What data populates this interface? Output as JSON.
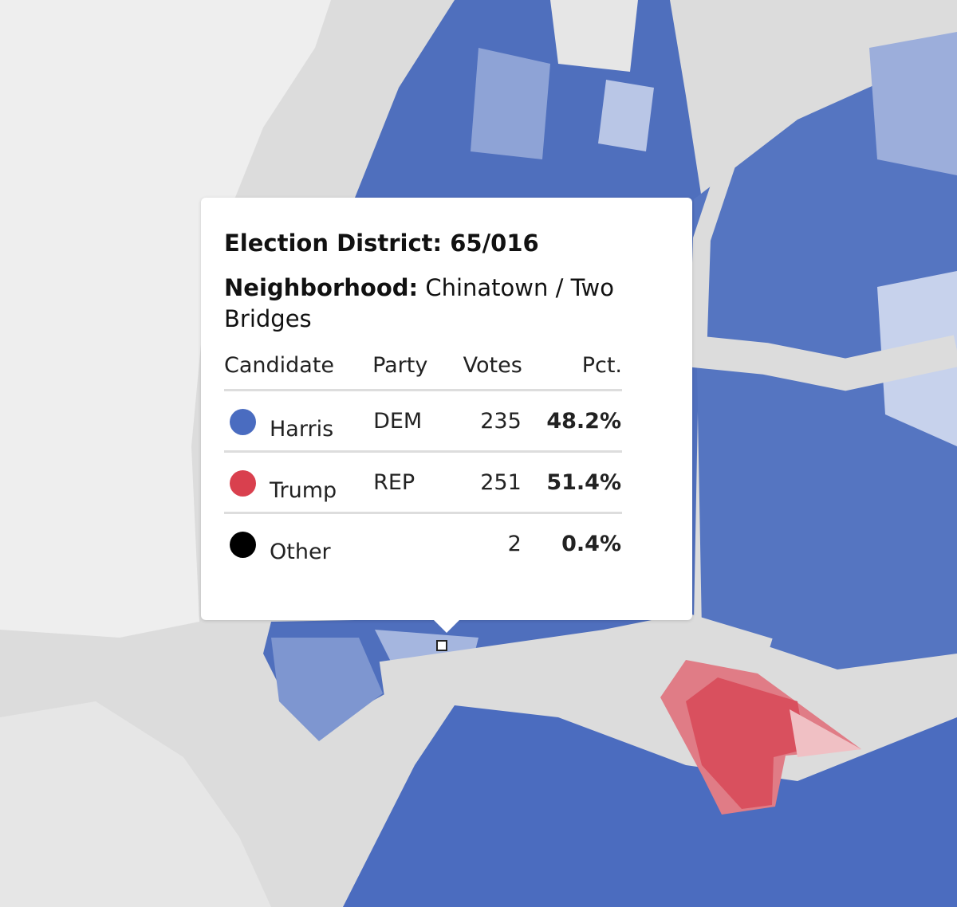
{
  "tooltip": {
    "district_label": "Election District:",
    "district": "65/016",
    "neighborhood_label": "Neighborhood:",
    "neighborhood": "Chinatown / Two Bridges",
    "columns": [
      "Candidate",
      "Party",
      "Votes",
      "Pct."
    ],
    "rows": [
      {
        "candidate": "Harris",
        "party": "DEM",
        "votes": 235,
        "pct": "48.2%",
        "color": "#4a6cc0"
      },
      {
        "candidate": "Trump",
        "party": "REP",
        "votes": 251,
        "pct": "51.4%",
        "color": "#d9404e"
      },
      {
        "candidate": "Other",
        "votes": 2,
        "pct": "0.4%",
        "color": "#000000"
      }
    ]
  }
}
